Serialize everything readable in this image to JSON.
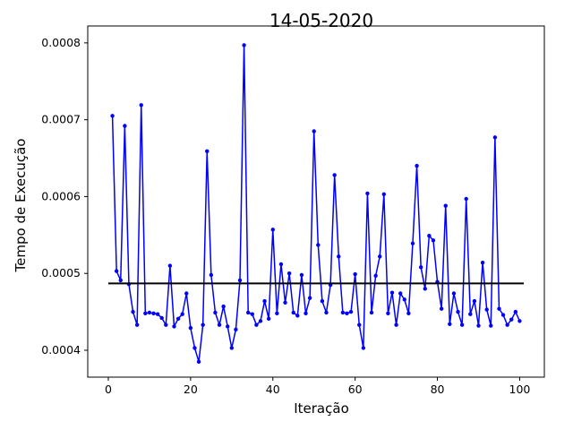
{
  "chart_data": {
    "type": "line",
    "title": "14-05-2020",
    "xlabel": "Iteração",
    "ylabel": "Tempo de Execução",
    "xlim": [
      -5,
      106
    ],
    "ylim": [
      0.000365,
      0.000822
    ],
    "xticks": [
      0,
      20,
      40,
      60,
      80,
      100
    ],
    "xtick_labels": [
      "0",
      "20",
      "40",
      "60",
      "80",
      "100"
    ],
    "yticks": [
      0.0004,
      0.0005,
      0.0006,
      0.0007,
      0.0008
    ],
    "ytick_labels": [
      "0.0004",
      "0.0005",
      "0.0006",
      "0.0007",
      "0.0008"
    ],
    "grid": false,
    "series": [
      {
        "color": "#0000ff",
        "marker": "circle",
        "x": [
          1,
          2,
          3,
          4,
          5,
          6,
          7,
          8,
          9,
          10,
          11,
          12,
          13,
          14,
          15,
          16,
          17,
          18,
          19,
          20,
          21,
          22,
          23,
          24,
          25,
          26,
          27,
          28,
          29,
          30,
          31,
          32,
          33,
          34,
          35,
          36,
          37,
          38,
          39,
          40,
          41,
          42,
          43,
          44,
          45,
          46,
          47,
          48,
          49,
          50,
          51,
          52,
          53,
          54,
          55,
          56,
          57,
          58,
          59,
          60,
          61,
          62,
          63,
          64,
          65,
          66,
          67,
          68,
          69,
          70,
          71,
          72,
          73,
          74,
          75,
          76,
          77,
          78,
          79,
          80,
          81,
          82,
          83,
          84,
          85,
          86,
          87,
          88,
          89,
          90,
          91,
          92,
          93,
          94,
          95,
          96,
          97,
          98,
          99,
          100
        ],
        "y": [
          0.000705,
          0.000503,
          0.000491,
          0.000692,
          0.000486,
          0.00045,
          0.000433,
          0.000719,
          0.000448,
          0.000449,
          0.000448,
          0.000447,
          0.000442,
          0.000433,
          0.00051,
          0.000431,
          0.000441,
          0.000447,
          0.000474,
          0.000429,
          0.000403,
          0.000385,
          0.000433,
          0.000659,
          0.000498,
          0.000449,
          0.000433,
          0.000457,
          0.000431,
          0.000403,
          0.000427,
          0.000491,
          0.000797,
          0.000449,
          0.000447,
          0.000433,
          0.000438,
          0.000464,
          0.000441,
          0.000557,
          0.000448,
          0.000512,
          0.000462,
          0.0005,
          0.000449,
          0.000445,
          0.000498,
          0.000448,
          0.000468,
          0.000685,
          0.000537,
          0.000464,
          0.000449,
          0.000485,
          0.000628,
          0.000522,
          0.000449,
          0.000448,
          0.00045,
          0.000499,
          0.000433,
          0.000403,
          0.000604,
          0.000449,
          0.000497,
          0.000522,
          0.000603,
          0.000448,
          0.000475,
          0.000433,
          0.000474,
          0.000466,
          0.000448,
          0.000539,
          0.00064,
          0.000508,
          0.00048,
          0.000549,
          0.000543,
          0.000489,
          0.000454,
          0.000588,
          0.000434,
          0.000474,
          0.00045,
          0.000433,
          0.000597,
          0.000447,
          0.000464,
          0.000432,
          0.000514,
          0.000453,
          0.000432,
          0.000677,
          0.000454,
          0.000446,
          0.000433,
          0.00044,
          0.00045,
          0.000438
        ]
      },
      {
        "color": "#000000",
        "marker": "none",
        "x": [
          0,
          101
        ],
        "y": [
          0.000487,
          0.000487
        ]
      }
    ]
  }
}
